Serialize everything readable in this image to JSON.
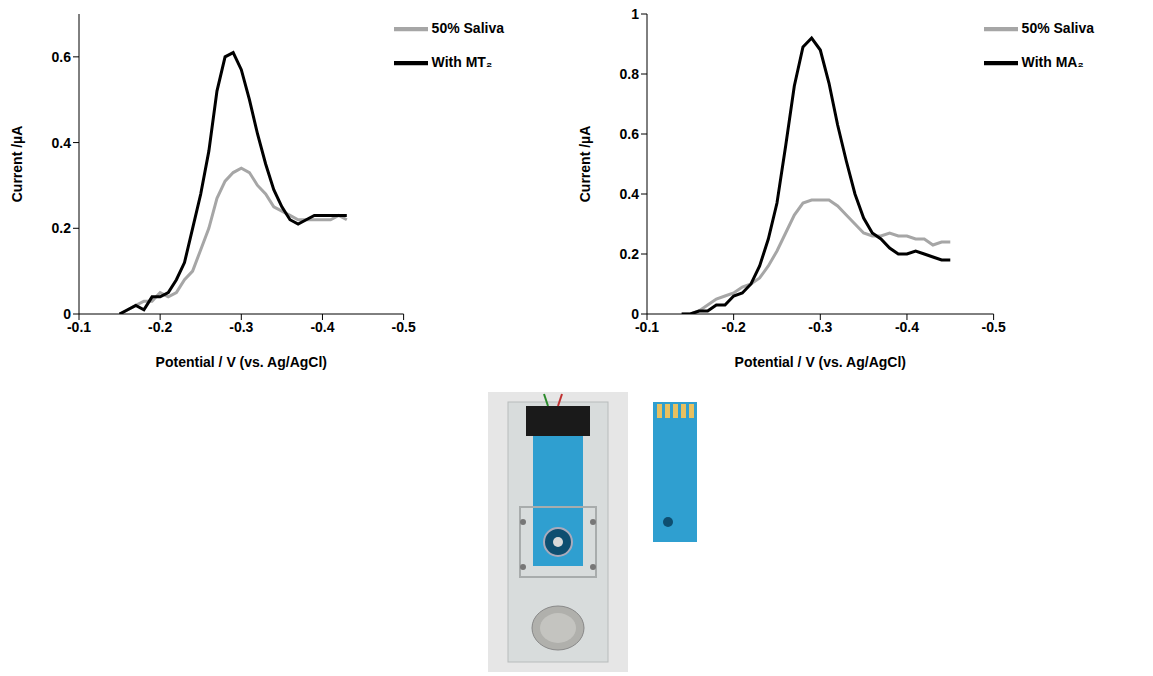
{
  "chart_data": [
    {
      "type": "line",
      "x_label": "Potential / V (vs. Ag/AgCl)",
      "y_label": "Current /µA",
      "xlim": [
        -0.1,
        -0.5
      ],
      "xticks": [
        -0.1,
        -0.2,
        -0.3,
        -0.4,
        -0.5
      ],
      "ylim": [
        0,
        0.7
      ],
      "yticks": [
        0,
        0.2,
        0.4,
        0.6
      ],
      "grid": false,
      "legend": "upper right",
      "x": [
        -0.15,
        -0.16,
        -0.17,
        -0.18,
        -0.19,
        -0.2,
        -0.21,
        -0.22,
        -0.23,
        -0.24,
        -0.25,
        -0.26,
        -0.27,
        -0.28,
        -0.29,
        -0.3,
        -0.31,
        -0.32,
        -0.33,
        -0.34,
        -0.35,
        -0.36,
        -0.37,
        -0.38,
        -0.39,
        -0.4,
        -0.41,
        -0.42,
        -0.43
      ],
      "series": [
        {
          "name": "50% Saliva",
          "color": "#a6a6a6",
          "values": [
            0,
            0.01,
            0.02,
            0.03,
            0.03,
            0.05,
            0.04,
            0.05,
            0.08,
            0.1,
            0.15,
            0.2,
            0.27,
            0.31,
            0.33,
            0.34,
            0.33,
            0.3,
            0.28,
            0.25,
            0.24,
            0.23,
            0.22,
            0.22,
            0.22,
            0.22,
            0.22,
            0.23,
            0.22
          ]
        },
        {
          "name": "With MT₂",
          "color": "#000000",
          "values": [
            0,
            0.01,
            0.02,
            0.01,
            0.04,
            0.04,
            0.05,
            0.08,
            0.12,
            0.2,
            0.28,
            0.38,
            0.52,
            0.6,
            0.61,
            0.57,
            0.5,
            0.42,
            0.35,
            0.29,
            0.25,
            0.22,
            0.21,
            0.22,
            0.23,
            0.23,
            0.23,
            0.23,
            0.23
          ]
        }
      ]
    },
    {
      "type": "line",
      "x_label": "Potential / V (vs. Ag/AgCl)",
      "y_label": "Current /µA",
      "xlim": [
        -0.1,
        -0.5
      ],
      "xticks": [
        -0.1,
        -0.2,
        -0.3,
        -0.4,
        -0.5
      ],
      "ylim": [
        0,
        1
      ],
      "yticks": [
        0,
        0.2,
        0.4,
        0.6,
        0.8,
        1
      ],
      "grid": false,
      "legend": "upper right",
      "x": [
        -0.14,
        -0.15,
        -0.16,
        -0.17,
        -0.18,
        -0.19,
        -0.2,
        -0.21,
        -0.22,
        -0.23,
        -0.24,
        -0.25,
        -0.26,
        -0.27,
        -0.28,
        -0.29,
        -0.3,
        -0.31,
        -0.32,
        -0.33,
        -0.34,
        -0.35,
        -0.36,
        -0.37,
        -0.38,
        -0.39,
        -0.4,
        -0.41,
        -0.42,
        -0.43,
        -0.44,
        -0.45
      ],
      "series": [
        {
          "name": "50% Saliva",
          "color": "#a6a6a6",
          "values": [
            0,
            0,
            0.01,
            0.03,
            0.05,
            0.06,
            0.07,
            0.09,
            0.1,
            0.12,
            0.16,
            0.21,
            0.27,
            0.33,
            0.37,
            0.38,
            0.38,
            0.38,
            0.36,
            0.33,
            0.3,
            0.27,
            0.26,
            0.26,
            0.27,
            0.26,
            0.26,
            0.25,
            0.25,
            0.23,
            0.24,
            0.24
          ]
        },
        {
          "name": "With MA₂",
          "color": "#000000",
          "values": [
            0,
            0,
            0.01,
            0.01,
            0.03,
            0.03,
            0.06,
            0.07,
            0.1,
            0.16,
            0.25,
            0.37,
            0.56,
            0.76,
            0.89,
            0.92,
            0.88,
            0.77,
            0.63,
            0.51,
            0.4,
            0.32,
            0.27,
            0.25,
            0.22,
            0.2,
            0.2,
            0.21,
            0.2,
            0.19,
            0.18,
            0.18
          ]
        }
      ]
    }
  ]
}
